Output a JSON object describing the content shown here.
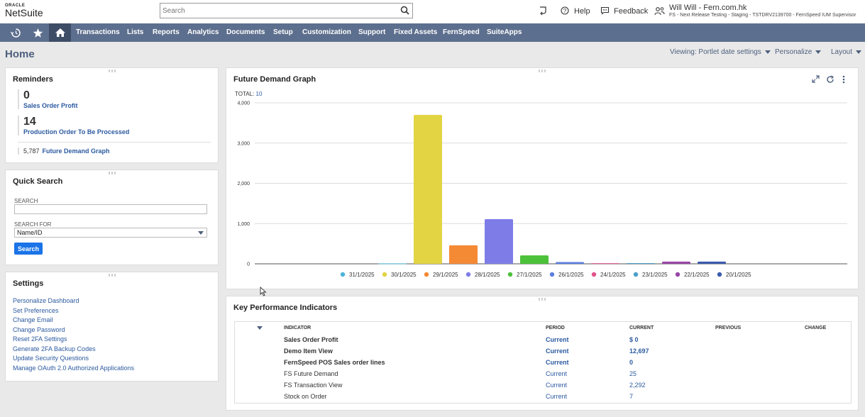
{
  "header": {
    "logo_top": "ORACLE",
    "logo_bottom": "NetSuite",
    "search_placeholder": "Search",
    "help": "Help",
    "feedback": "Feedback",
    "user_name": "Will Will - Fern.com.hk",
    "user_role": "FS - Next Release Testing - Staging - TSTDRV2139700 - FernSpeed IUM Supervisor"
  },
  "nav": {
    "items": [
      "Transactions",
      "Lists",
      "Reports",
      "Analytics",
      "Documents",
      "Setup",
      "Customization",
      "Support",
      "Fixed Assets",
      "FernSpeed",
      "SuiteApps"
    ],
    "icons": [
      "recent-records-icon",
      "star-icon",
      "home-icon"
    ]
  },
  "page": {
    "title": "Home",
    "viewing": "Viewing: Portlet date settings",
    "personalize": "Personalize",
    "layout": "Layout"
  },
  "reminders": {
    "title": "Reminders",
    "items": [
      {
        "count": "0",
        "label": "Sales Order Profit"
      },
      {
        "count": "14",
        "label": "Production Order To Be Processed"
      }
    ],
    "small": {
      "count": "5,787",
      "label": "Future Demand Graph"
    }
  },
  "quick_search": {
    "title": "Quick Search",
    "search_label": "SEARCH",
    "search_value": "",
    "search_for_label": "SEARCH FOR",
    "search_for_value": "Name/ID",
    "button": "Search"
  },
  "settings": {
    "title": "Settings",
    "links": [
      "Personalize Dashboard",
      "Set Preferences",
      "Change Email",
      "Change Password",
      "Reset 2FA Settings",
      "Generate 2FA Backup Codes",
      "Update Security Questions",
      "Manage OAuth 2.0 Authorized Applications"
    ]
  },
  "chart_portlet": {
    "title": "Future Demand Graph",
    "total_label": "TOTAL:",
    "total_value": "10"
  },
  "chart_data": {
    "type": "bar",
    "categories": [
      "31/1/2025",
      "30/1/2025",
      "29/1/2025",
      "28/1/2025",
      "27/1/2025",
      "26/1/2025",
      "24/1/2025",
      "23/1/2025",
      "22/1/2025",
      "20/1/2025"
    ],
    "values": [
      10,
      3700,
      460,
      1110,
      210,
      45,
      15,
      18,
      55,
      55
    ],
    "colors": [
      "#4fb3d9",
      "#e2d443",
      "#f58a35",
      "#7e7de8",
      "#4cc13a",
      "#5d7fe0",
      "#e0528c",
      "#4aa0c9",
      "#9747a6",
      "#3b5bab"
    ],
    "ylim": [
      0,
      4000
    ],
    "yticks": [
      "0",
      "1,000",
      "2,000",
      "3,000",
      "4,000"
    ],
    "ytick_values": [
      0,
      1000,
      2000,
      3000,
      4000
    ],
    "grid": true,
    "legend_position": "bottom"
  },
  "kpi": {
    "title": "Key Performance Indicators",
    "columns": [
      "INDICATOR",
      "PERIOD",
      "CURRENT",
      "PREVIOUS",
      "CHANGE"
    ],
    "rows": [
      {
        "indicator": "Sales Order Profit",
        "period": "Current",
        "current": "$ 0"
      },
      {
        "indicator": "Demo Item View",
        "period": "Current",
        "current": "12,697"
      },
      {
        "indicator": "FernSpeed POS Sales order lines",
        "period": "Current",
        "current": "0"
      },
      {
        "indicator": "FS Future Demand",
        "period": "Current",
        "current": "25"
      },
      {
        "indicator": "FS Transaction View",
        "period": "Current",
        "current": "2,292"
      },
      {
        "indicator": "Stock on Order",
        "period": "Current",
        "current": "7"
      }
    ]
  }
}
